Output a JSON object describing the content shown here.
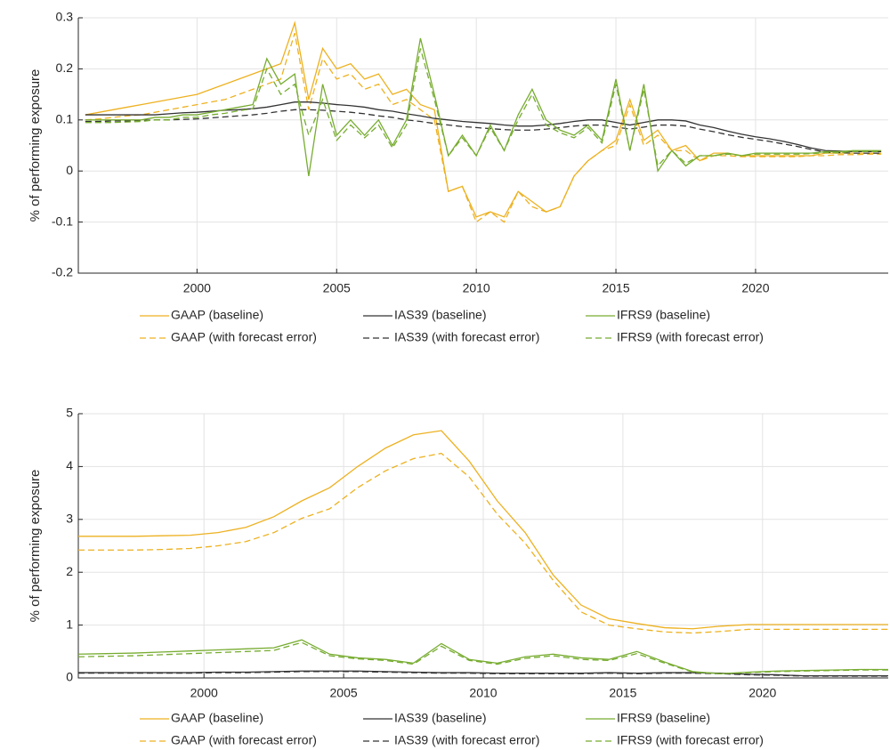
{
  "chart_data": [
    {
      "type": "line",
      "ylabel": "% of performing exposure",
      "grid": true,
      "xlim": [
        1995.75,
        2024.75
      ],
      "xticks": [
        2000,
        2005,
        2010,
        2015,
        2020
      ],
      "ylim": [
        -0.2,
        0.3
      ],
      "yticks": [
        -0.2,
        -0.1,
        0,
        0.1,
        0.2,
        0.3
      ],
      "x": [
        1996,
        1996.5,
        1997,
        1997.5,
        1998,
        1998.5,
        1999,
        1999.5,
        2000,
        2000.5,
        2001,
        2001.5,
        2002,
        2002.5,
        2003,
        2003.5,
        2004,
        2004.5,
        2005,
        2005.5,
        2006,
        2006.5,
        2007,
        2007.5,
        2008,
        2008.5,
        2009,
        2009.5,
        2010,
        2010.5,
        2011,
        2011.5,
        2012,
        2012.5,
        2013,
        2013.5,
        2014,
        2014.5,
        2015,
        2015.5,
        2016,
        2016.5,
        2017,
        2017.5,
        2018,
        2018.5,
        2019,
        2019.5,
        2020,
        2020.5,
        2021,
        2021.5,
        2022,
        2022.5,
        2023,
        2023.5,
        2024,
        2024.5
      ],
      "series": [
        {
          "name": "GAAP (baseline)",
          "color": "#edb120",
          "line_style": "solid",
          "values": [
            0.11,
            0.115,
            0.12,
            0.125,
            0.13,
            0.135,
            0.14,
            0.145,
            0.15,
            0.16,
            0.17,
            0.18,
            0.19,
            0.2,
            0.21,
            0.29,
            0.14,
            0.24,
            0.2,
            0.21,
            0.18,
            0.19,
            0.15,
            0.16,
            0.13,
            0.12,
            -0.04,
            -0.03,
            -0.09,
            -0.08,
            -0.09,
            -0.04,
            -0.06,
            -0.08,
            -0.07,
            -0.01,
            0.02,
            0.04,
            0.06,
            0.14,
            0.06,
            0.08,
            0.04,
            0.05,
            0.02,
            0.035,
            0.035,
            0.03,
            0.03,
            0.03,
            0.03,
            0.03,
            0.03,
            0.035,
            0.035,
            0.035,
            0.035,
            0.035
          ]
        },
        {
          "name": "GAAP (with forecast error)",
          "color": "#edb120",
          "line_style": "dashed",
          "values": [
            0.1,
            0.102,
            0.105,
            0.108,
            0.11,
            0.115,
            0.12,
            0.125,
            0.13,
            0.135,
            0.14,
            0.15,
            0.16,
            0.17,
            0.18,
            0.27,
            0.12,
            0.22,
            0.18,
            0.19,
            0.16,
            0.17,
            0.13,
            0.14,
            0.12,
            0.1,
            -0.04,
            -0.03,
            -0.1,
            -0.08,
            -0.1,
            -0.04,
            -0.07,
            -0.08,
            -0.07,
            -0.01,
            0.02,
            0.04,
            0.05,
            0.13,
            0.05,
            0.07,
            0.04,
            0.04,
            0.02,
            0.03,
            0.03,
            0.028,
            0.028,
            0.028,
            0.028,
            0.028,
            0.03,
            0.03,
            0.032,
            0.032,
            0.033,
            0.033
          ]
        },
        {
          "name": "IAS39 (baseline)",
          "color": "#333333",
          "line_style": "solid",
          "values": [
            0.11,
            0.11,
            0.11,
            0.11,
            0.11,
            0.11,
            0.112,
            0.114,
            0.115,
            0.117,
            0.119,
            0.12,
            0.122,
            0.125,
            0.13,
            0.135,
            0.135,
            0.133,
            0.13,
            0.128,
            0.125,
            0.12,
            0.117,
            0.112,
            0.108,
            0.103,
            0.1,
            0.097,
            0.095,
            0.093,
            0.09,
            0.088,
            0.088,
            0.09,
            0.093,
            0.097,
            0.1,
            0.1,
            0.095,
            0.09,
            0.095,
            0.1,
            0.1,
            0.098,
            0.09,
            0.085,
            0.078,
            0.072,
            0.067,
            0.063,
            0.058,
            0.052,
            0.045,
            0.04,
            0.039,
            0.038,
            0.038,
            0.038
          ]
        },
        {
          "name": "IAS39 (with forecast error)",
          "color": "#333333",
          "line_style": "dashed",
          "values": [
            0.097,
            0.097,
            0.098,
            0.098,
            0.099,
            0.1,
            0.1,
            0.101,
            0.102,
            0.104,
            0.106,
            0.108,
            0.11,
            0.113,
            0.117,
            0.12,
            0.12,
            0.119,
            0.117,
            0.115,
            0.112,
            0.108,
            0.105,
            0.1,
            0.097,
            0.093,
            0.09,
            0.087,
            0.085,
            0.083,
            0.081,
            0.08,
            0.08,
            0.082,
            0.085,
            0.088,
            0.09,
            0.09,
            0.086,
            0.082,
            0.086,
            0.09,
            0.09,
            0.088,
            0.082,
            0.077,
            0.071,
            0.066,
            0.062,
            0.058,
            0.053,
            0.048,
            0.042,
            0.037,
            0.036,
            0.035,
            0.035,
            0.035
          ]
        },
        {
          "name": "IFRS9 (baseline)",
          "color": "#77ac30",
          "line_style": "solid",
          "values": [
            0.1,
            0.1,
            0.1,
            0.1,
            0.1,
            0.105,
            0.105,
            0.11,
            0.11,
            0.115,
            0.12,
            0.125,
            0.13,
            0.22,
            0.17,
            0.19,
            -0.01,
            0.17,
            0.07,
            0.1,
            0.07,
            0.1,
            0.05,
            0.1,
            0.26,
            0.15,
            0.03,
            0.07,
            0.03,
            0.09,
            0.04,
            0.11,
            0.16,
            0.1,
            0.08,
            0.07,
            0.09,
            0.06,
            0.18,
            0.04,
            0.17,
            0,
            0.04,
            0.01,
            0.03,
            0.03,
            0.035,
            0.03,
            0.035,
            0.035,
            0.035,
            0.035,
            0.035,
            0.038,
            0.038,
            0.04,
            0.04,
            0.04
          ]
        },
        {
          "name": "IFRS9 (with forecast error)",
          "color": "#77ac30",
          "line_style": "dashed",
          "values": [
            0.095,
            0.095,
            0.095,
            0.096,
            0.097,
            0.1,
            0.1,
            0.105,
            0.105,
            0.11,
            0.113,
            0.118,
            0.122,
            0.2,
            0.15,
            0.17,
            0.07,
            0.14,
            0.06,
            0.09,
            0.065,
            0.09,
            0.045,
            0.09,
            0.24,
            0.14,
            0.03,
            0.065,
            0.03,
            0.085,
            0.04,
            0.1,
            0.15,
            0.09,
            0.075,
            0.065,
            0.085,
            0.055,
            0.17,
            0.04,
            0.16,
            0.01,
            0.04,
            0.015,
            0.03,
            0.03,
            0.033,
            0.03,
            0.033,
            0.033,
            0.033,
            0.033,
            0.034,
            0.036,
            0.036,
            0.038,
            0.038,
            0.038
          ]
        }
      ]
    },
    {
      "type": "line",
      "ylabel": "% of performing exposure",
      "grid": true,
      "xlim": [
        1995.5,
        2024.5
      ],
      "xticks": [
        2000,
        2005,
        2010,
        2015,
        2020
      ],
      "ylim": [
        0,
        5
      ],
      "yticks": [
        0,
        1,
        2,
        3,
        4,
        5
      ],
      "x": [
        1995.5,
        1996.5,
        1997.5,
        1998.5,
        1999.5,
        2000.5,
        2001.5,
        2002.5,
        2003.5,
        2004.5,
        2005.5,
        2006.5,
        2007.5,
        2008.5,
        2009.5,
        2010.5,
        2011.5,
        2012.5,
        2013.5,
        2014.5,
        2015.5,
        2016.5,
        2017.5,
        2018.5,
        2019.5,
        2020.5,
        2021.5,
        2022.5,
        2023.5,
        2024.5
      ],
      "series": [
        {
          "name": "GAAP (baseline)",
          "color": "#edb120",
          "line_style": "solid",
          "values": [
            2.68,
            2.68,
            2.68,
            2.69,
            2.7,
            2.75,
            2.85,
            3.05,
            3.35,
            3.6,
            4.0,
            4.35,
            4.6,
            4.68,
            4.1,
            3.35,
            2.75,
            1.95,
            1.38,
            1.12,
            1.03,
            0.95,
            0.93,
            0.98,
            1.01,
            1.01,
            1.01,
            1.01,
            1.01,
            1.01
          ]
        },
        {
          "name": "GAAP (with forecast error)",
          "color": "#edb120",
          "line_style": "dashed",
          "values": [
            2.42,
            2.42,
            2.42,
            2.43,
            2.45,
            2.5,
            2.58,
            2.75,
            3.02,
            3.2,
            3.6,
            3.92,
            4.15,
            4.25,
            3.8,
            3.1,
            2.55,
            1.85,
            1.25,
            1.0,
            0.93,
            0.87,
            0.85,
            0.88,
            0.92,
            0.92,
            0.92,
            0.92,
            0.92,
            0.92
          ]
        },
        {
          "name": "IAS39 (baseline)",
          "color": "#333333",
          "line_style": "solid",
          "values": [
            0.1,
            0.1,
            0.1,
            0.1,
            0.1,
            0.11,
            0.11,
            0.12,
            0.13,
            0.13,
            0.13,
            0.12,
            0.11,
            0.1,
            0.1,
            0.09,
            0.09,
            0.09,
            0.09,
            0.1,
            0.09,
            0.1,
            0.1,
            0.09,
            0.07,
            0.06,
            0.04,
            0.04,
            0.04,
            0.04
          ]
        },
        {
          "name": "IAS39 (with forecast error)",
          "color": "#333333",
          "line_style": "dashed",
          "values": [
            0.09,
            0.09,
            0.09,
            0.09,
            0.09,
            0.1,
            0.1,
            0.11,
            0.12,
            0.12,
            0.12,
            0.11,
            0.1,
            0.09,
            0.09,
            0.08,
            0.08,
            0.08,
            0.08,
            0.09,
            0.08,
            0.09,
            0.09,
            0.08,
            0.06,
            0.05,
            0.035,
            0.035,
            0.035,
            0.035
          ]
        },
        {
          "name": "IFRS9 (baseline)",
          "color": "#77ac30",
          "line_style": "solid",
          "values": [
            0.45,
            0.46,
            0.47,
            0.49,
            0.51,
            0.53,
            0.55,
            0.57,
            0.72,
            0.45,
            0.38,
            0.35,
            0.28,
            0.65,
            0.35,
            0.28,
            0.4,
            0.45,
            0.38,
            0.35,
            0.5,
            0.3,
            0.12,
            0.08,
            0.11,
            0.13,
            0.14,
            0.15,
            0.16,
            0.16
          ]
        },
        {
          "name": "IFRS9 (with forecast error)",
          "color": "#77ac30",
          "line_style": "dashed",
          "values": [
            0.4,
            0.41,
            0.42,
            0.44,
            0.46,
            0.48,
            0.5,
            0.52,
            0.67,
            0.42,
            0.36,
            0.33,
            0.26,
            0.6,
            0.33,
            0.26,
            0.37,
            0.42,
            0.35,
            0.33,
            0.46,
            0.28,
            0.11,
            0.08,
            0.1,
            0.12,
            0.13,
            0.14,
            0.15,
            0.15
          ]
        }
      ]
    }
  ]
}
